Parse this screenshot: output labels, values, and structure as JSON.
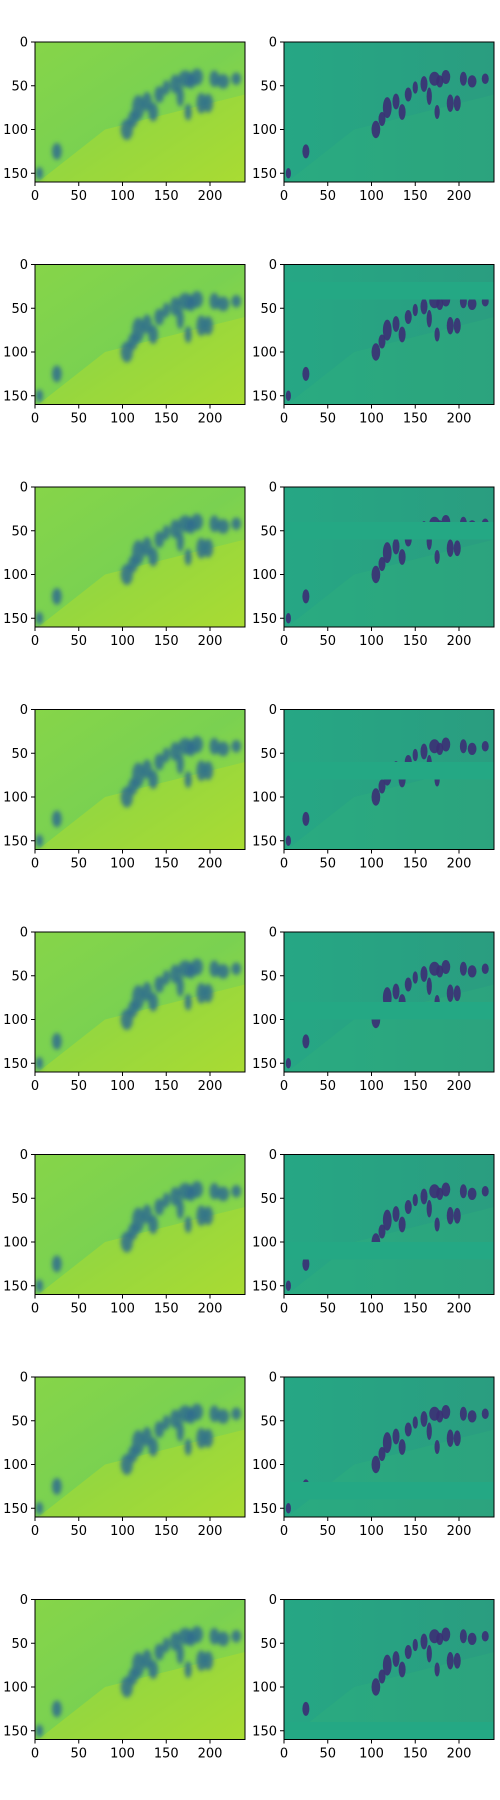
{
  "chart_data": {
    "type": "heatmap",
    "layout": {
      "rows": 8,
      "cols": 2
    },
    "colormap": "viridis",
    "image_shape": [
      160,
      240
    ],
    "x_ticks": [
      0,
      50,
      100,
      150,
      200
    ],
    "y_ticks": [
      0,
      50,
      100,
      150
    ],
    "x_lim": [
      0,
      240
    ],
    "y_lim": [
      160,
      0
    ],
    "grid": false,
    "panels_left": {
      "description": "smooth reconstruction",
      "base_color": "#7fd34e",
      "blob_color": "#2f6c8e"
    },
    "panels_right": {
      "description": "detail map with horizontal masked band",
      "base_color": "#22a884",
      "blob_color": "#3b2f74",
      "masked_band_y": [
        [
          0,
          0
        ],
        [
          20,
          40
        ],
        [
          40,
          60
        ],
        [
          60,
          80
        ],
        [
          80,
          100
        ],
        [
          100,
          120
        ],
        [
          120,
          140
        ],
        [
          140,
          160
        ]
      ]
    },
    "blobs": [
      [
        105,
        100,
        5,
        10
      ],
      [
        112,
        88,
        4,
        8
      ],
      [
        118,
        75,
        5,
        12
      ],
      [
        128,
        68,
        4,
        9
      ],
      [
        135,
        80,
        4,
        9
      ],
      [
        142,
        60,
        4,
        8
      ],
      [
        150,
        52,
        3,
        7
      ],
      [
        160,
        48,
        4,
        9
      ],
      [
        166,
        62,
        3,
        10
      ],
      [
        172,
        42,
        6,
        8
      ],
      [
        178,
        45,
        4,
        7
      ],
      [
        185,
        40,
        5,
        8
      ],
      [
        190,
        70,
        4,
        10
      ],
      [
        198,
        70,
        4,
        9
      ],
      [
        205,
        42,
        4,
        8
      ],
      [
        215,
        45,
        5,
        7
      ],
      [
        230,
        42,
        4,
        6
      ],
      [
        25,
        125,
        4,
        8
      ],
      [
        5,
        150,
        3,
        6
      ],
      [
        175,
        80,
        3,
        8
      ]
    ]
  }
}
